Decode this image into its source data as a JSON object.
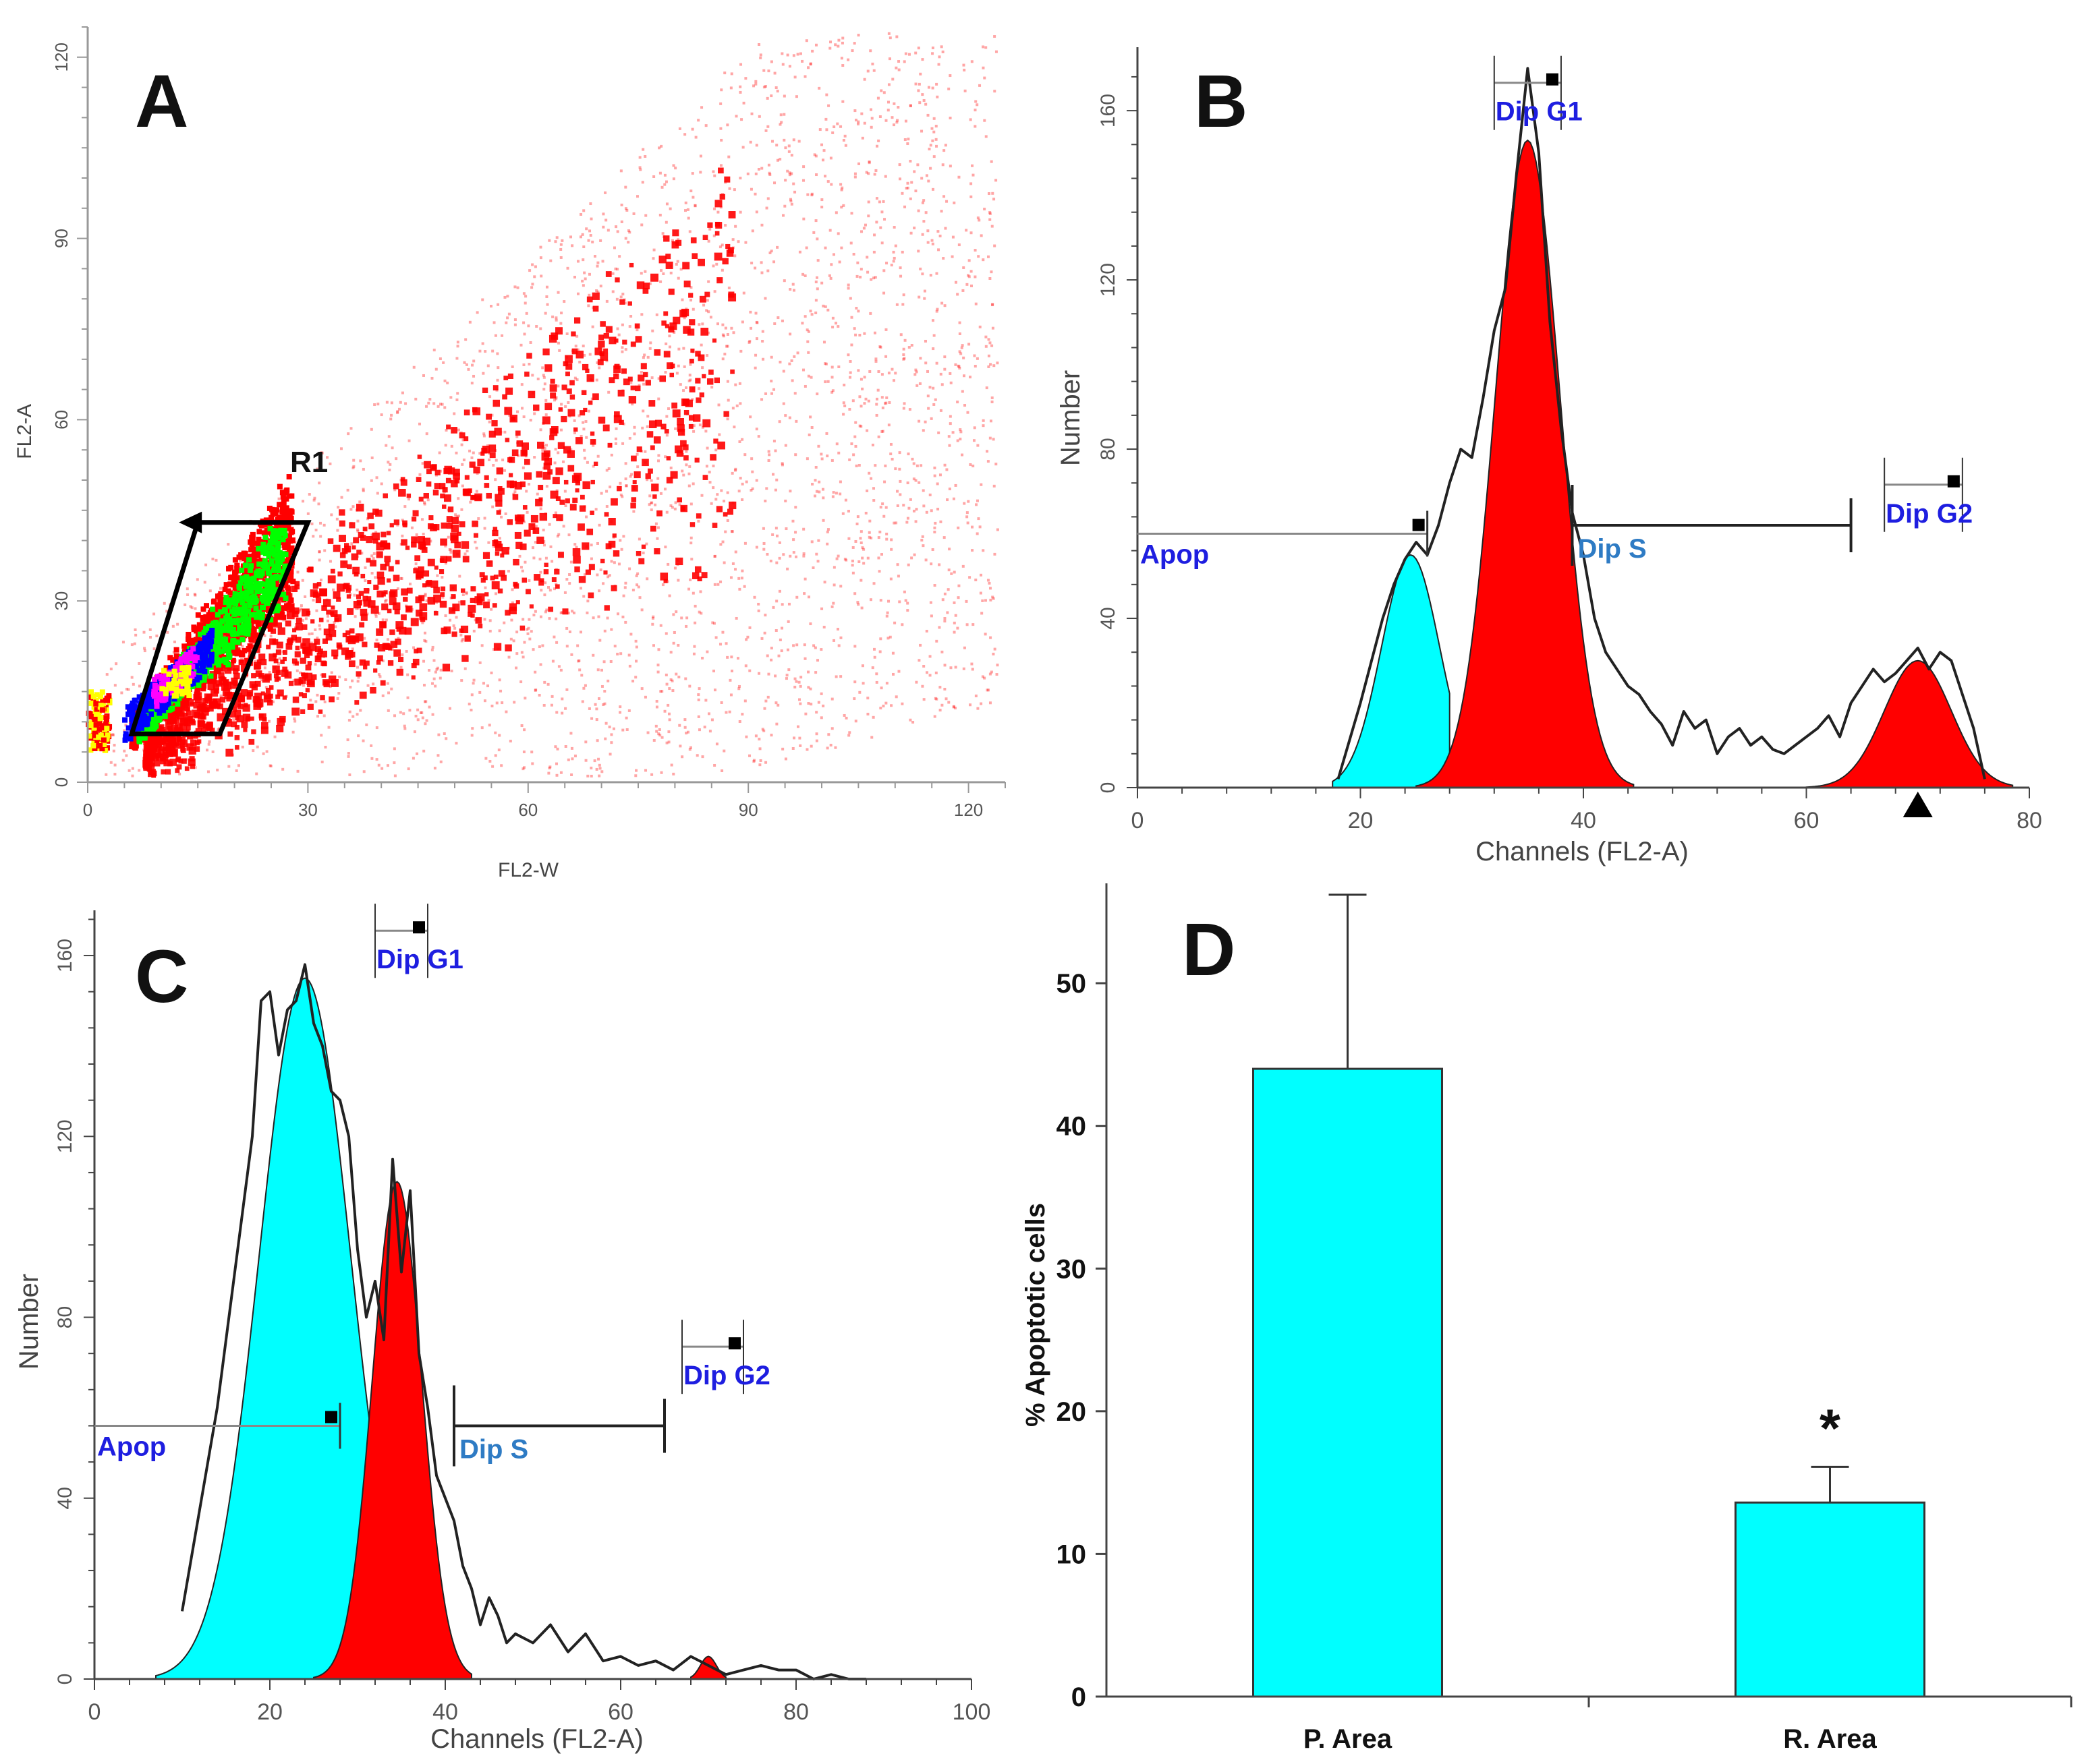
{
  "chart_data": [
    {
      "panel": "A",
      "type": "scatter",
      "xlabel": "FL2-W",
      "ylabel": "FL2-A",
      "xlim": [
        0,
        125
      ],
      "ylim": [
        0,
        125
      ],
      "xticks": [
        0,
        30,
        60,
        90,
        120
      ],
      "yticks": [
        0,
        30,
        60,
        90,
        120
      ],
      "gate": {
        "label": "R1",
        "polygon": [
          [
            6,
            8
          ],
          [
            18,
            8
          ],
          [
            30,
            43
          ],
          [
            15,
            43
          ]
        ]
      },
      "colors": {
        "low": "#ff0000",
        "mid1": "#00ff00",
        "mid2": "#0000ff",
        "high1": "#ff00ff",
        "high2": "#ffff00"
      }
    },
    {
      "panel": "B",
      "type": "area",
      "xlabel": "Channels (FL2-A)",
      "ylabel": "Number",
      "xlim": [
        0,
        80
      ],
      "ylim": [
        0,
        175
      ],
      "xticks": [
        0,
        20,
        40,
        60,
        80
      ],
      "yticks": [
        0,
        40,
        80,
        120,
        160
      ],
      "series": [
        {
          "name": "Apop",
          "color": "#00ffff",
          "shape": {
            "center": 24.5,
            "height": 55,
            "sigma": 2.6,
            "start": 17.5,
            "end": 28
          }
        },
        {
          "name": "Dip G1",
          "color": "#ff0000",
          "shape": {
            "center": 35,
            "height": 153,
            "sigma": 2.9,
            "start": 25,
            "end": 44.5
          }
        },
        {
          "name": "Dip G2",
          "color": "#ff0000",
          "shape": {
            "center": 70,
            "height": 30,
            "sigma": 3.0,
            "start": 60,
            "end": 78.5
          }
        }
      ],
      "histogram": {
        "x": [
          18,
          20,
          22,
          23,
          24,
          25,
          26,
          27,
          28,
          29,
          30,
          31,
          32,
          33,
          34,
          35,
          36,
          37,
          38,
          39,
          40,
          41,
          42,
          43,
          44,
          45,
          46,
          47,
          48,
          49,
          50,
          51,
          52,
          53,
          54,
          55,
          56,
          57,
          58,
          59,
          60,
          61,
          62,
          63,
          64,
          65,
          66,
          67,
          68,
          69,
          70,
          71,
          72,
          73,
          74,
          75,
          76
        ],
        "y": [
          2,
          20,
          40,
          48,
          54,
          58,
          55,
          62,
          72,
          80,
          78,
          92,
          108,
          118,
          145,
          170,
          150,
          110,
          85,
          65,
          55,
          40,
          32,
          28,
          24,
          22,
          18,
          15,
          10,
          18,
          14,
          16,
          8,
          12,
          14,
          10,
          12,
          9,
          8,
          10,
          12,
          14,
          17,
          12,
          20,
          24,
          28,
          25,
          27,
          30,
          33,
          28,
          32,
          30,
          22,
          14,
          2
        ]
      },
      "markers": {
        "apop": {
          "label": "Apop",
          "range": [
            0,
            26
          ],
          "y": 60
        },
        "dipg1": {
          "label": "Dip G1",
          "range": [
            32,
            38
          ],
          "y": 165
        },
        "dips": {
          "label": "Dip S",
          "range": [
            39,
            64
          ],
          "y": 62
        },
        "dipg2": {
          "label": "Dip G2",
          "range": [
            67,
            74
          ],
          "y": 70
        }
      }
    },
    {
      "panel": "C",
      "type": "area",
      "xlabel": "Channels (FL2-A)",
      "ylabel": "Number",
      "xlim": [
        0,
        100
      ],
      "ylim": [
        0,
        170
      ],
      "xticks": [
        0,
        20,
        40,
        60,
        80,
        100
      ],
      "yticks": [
        0,
        40,
        80,
        120,
        160
      ],
      "series": [
        {
          "name": "Apop",
          "color": "#00ffff",
          "shape": {
            "center": 24,
            "height": 155,
            "sigma": 5.2,
            "start": 7,
            "end": 34
          }
        },
        {
          "name": "Dip G1",
          "color": "#ff0000",
          "shape": {
            "center": 34.5,
            "height": 110,
            "sigma": 2.8,
            "start": 25,
            "end": 43
          }
        },
        {
          "name": "Dip G2",
          "color": "#ff0000",
          "shape": {
            "center": 70,
            "height": 5,
            "sigma": 0.9,
            "start": 68,
            "end": 72
          }
        }
      ],
      "histogram": {
        "x": [
          10,
          14,
          18,
          19,
          20,
          21,
          22,
          23,
          24,
          25,
          26,
          27,
          28,
          29,
          30,
          31,
          32,
          33,
          34,
          35,
          36,
          37,
          38,
          39,
          40,
          41,
          42,
          43,
          44,
          45,
          46,
          47,
          48,
          50,
          52,
          54,
          56,
          58,
          60,
          62,
          64,
          66,
          68,
          70,
          72,
          74,
          76,
          78,
          80,
          82,
          84,
          86,
          88
        ],
        "y": [
          15,
          60,
          120,
          150,
          152,
          138,
          148,
          150,
          158,
          145,
          140,
          130,
          128,
          120,
          95,
          80,
          88,
          75,
          115,
          90,
          108,
          72,
          60,
          45,
          40,
          35,
          25,
          20,
          12,
          18,
          14,
          8,
          10,
          8,
          12,
          6,
          10,
          4,
          5,
          3,
          4,
          2,
          5,
          3,
          1,
          2,
          3,
          2,
          2,
          0,
          1,
          0,
          0
        ]
      },
      "markers": {
        "apop": {
          "label": "Apop",
          "range": [
            0,
            28
          ],
          "y": 56
        },
        "dipg1": {
          "label": "Dip G1",
          "range": [
            32,
            38
          ],
          "y": 164
        },
        "dips": {
          "label": "Dip S",
          "range": [
            41,
            65
          ],
          "y": 56
        },
        "dipg2": {
          "label": "Dip G2",
          "range": [
            67,
            74
          ],
          "y": 72
        }
      }
    },
    {
      "panel": "D",
      "type": "bar",
      "ylabel": "% Apoptotic cells",
      "categories": [
        "P. Area",
        "R. Area"
      ],
      "values": [
        44,
        13.6
      ],
      "errors": [
        12.2,
        2.5
      ],
      "ylim": [
        0,
        57
      ],
      "yticks": [
        0,
        10,
        20,
        30,
        40,
        50
      ],
      "significance": [
        "",
        "*"
      ],
      "color": "#00ffff"
    }
  ]
}
